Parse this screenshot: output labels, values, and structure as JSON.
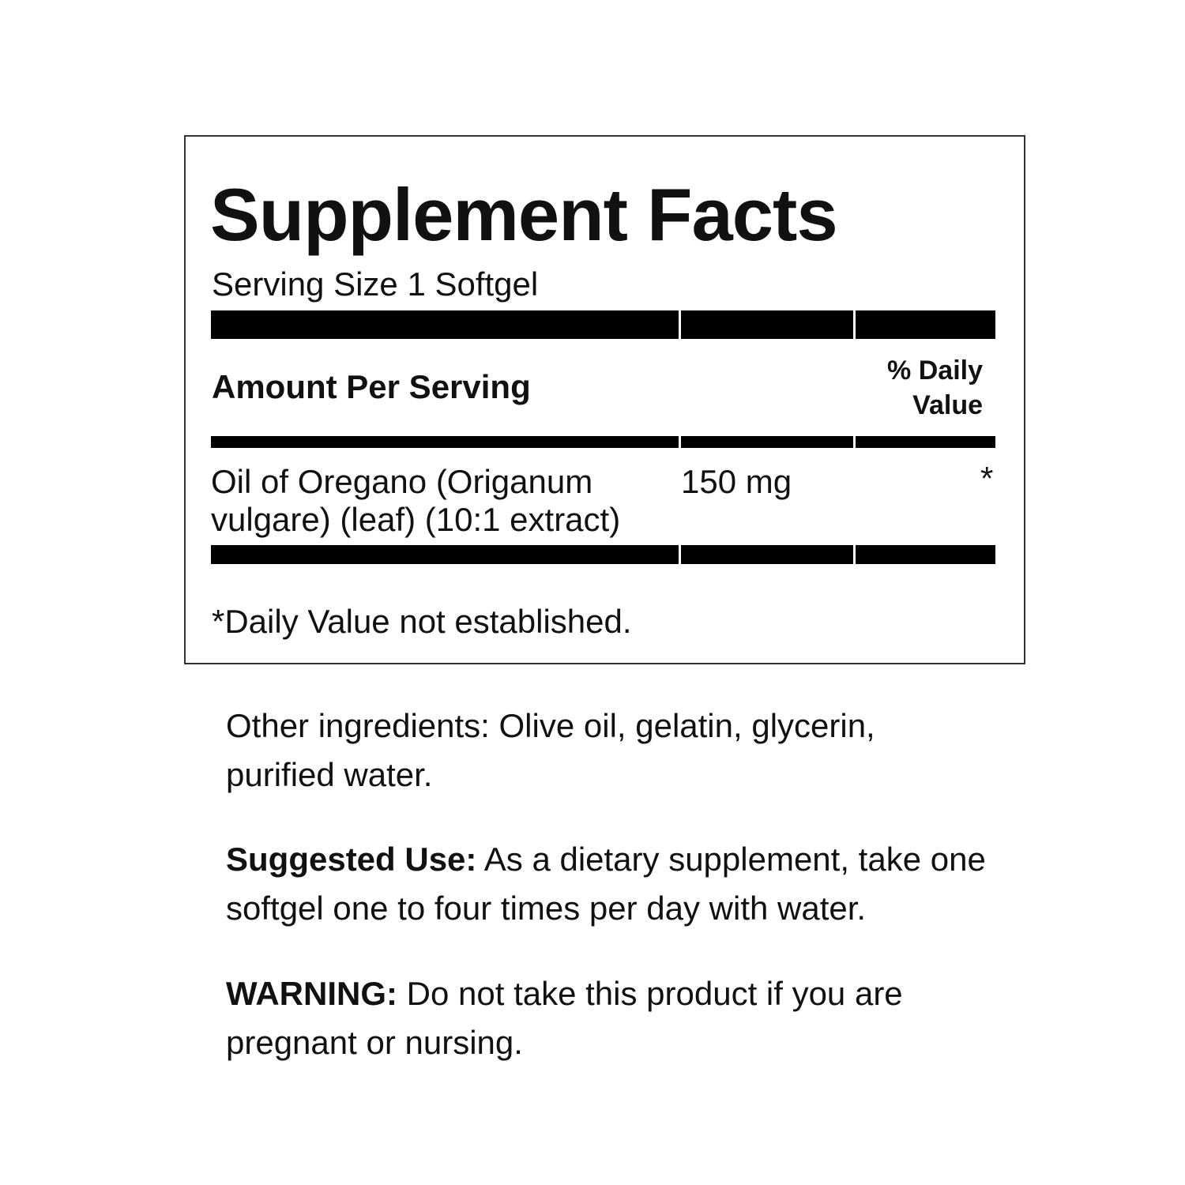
{
  "facts": {
    "title": "Supplement Facts",
    "serving_size": "Serving Size 1 Softgel",
    "amount_header": "Amount Per Serving",
    "dv_header_line1": "% Daily",
    "dv_header_line2": "Value",
    "rows": [
      {
        "name_line1": "Oil of Oregano (Origanum",
        "name_line2": "vulgare) (leaf) (10:1 extract)",
        "amount": "150 mg",
        "dv": "*"
      }
    ],
    "footnote": "*Daily Value not established."
  },
  "other_ingredients": "Other ingredients: Olive oil, gelatin, glycerin, purified water.",
  "suggested_use": {
    "label": "Suggested Use:",
    "text": " As a dietary supplement, take one softgel one to four times per day with water."
  },
  "warning": {
    "label": "WARNING:",
    "text": " Do not take this product if you are pregnant or nursing."
  }
}
